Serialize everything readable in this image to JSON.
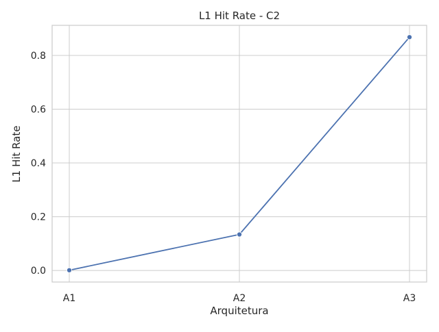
{
  "chart_data": {
    "type": "line",
    "title": "L1 Hit Rate - C2",
    "xlabel": "Arquitetura",
    "ylabel": "L1 Hit Rate",
    "categories": [
      "A1",
      "A2",
      "A3"
    ],
    "values": [
      0.001,
      0.134,
      0.868
    ],
    "ylim": [
      -0.043,
      0.912
    ],
    "yticks": [
      0.0,
      0.2,
      0.4,
      0.6,
      0.8
    ],
    "ytick_labels": [
      "0.0",
      "0.2",
      "0.4",
      "0.6",
      "0.8"
    ],
    "grid": true,
    "legend": "none",
    "colors": {
      "line": "#4c72b0",
      "grid": "#cccccc",
      "frame": "#cccccc",
      "text": "#262626"
    }
  }
}
